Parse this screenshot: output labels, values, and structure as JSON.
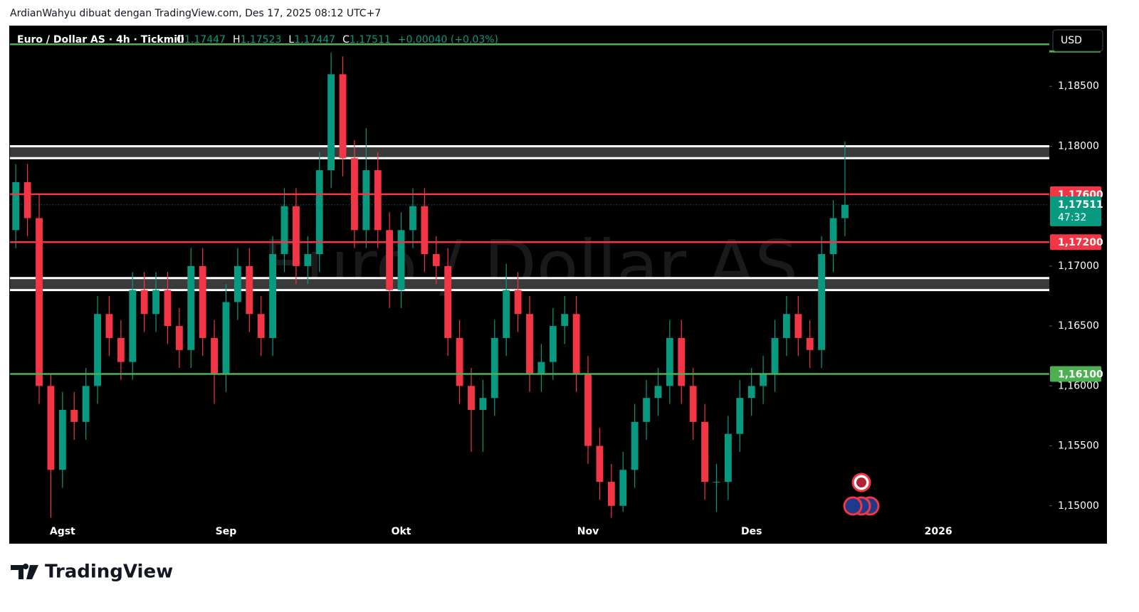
{
  "attribution": "ArdianWahyu dibuat dengan TradingView.com, Des 17, 2025 08:12 UTC+7",
  "brand": "TradingView",
  "chart_data": {
    "type": "candlestick",
    "title": "Euro / Dollar AS · 4h · Tickmill",
    "watermark": "Euro / Dollar AS",
    "currency": "USD",
    "ohlc_legend": [
      {
        "key": "O",
        "value": "1,17447"
      },
      {
        "key": "H",
        "value": "1,17523"
      },
      {
        "key": "L",
        "value": "1,17447"
      },
      {
        "key": "C",
        "value": "1,17511"
      }
    ],
    "change": "+0,00040 (+0,03%)",
    "up_color": "#089981",
    "down_color": "#f23645",
    "categories": [
      null,
      null,
      null,
      null,
      "Agst",
      null,
      null,
      null,
      null,
      null,
      null,
      null,
      null,
      null,
      null,
      null,
      null,
      null,
      "Sep",
      null,
      null,
      null,
      null,
      null,
      null,
      null,
      null,
      null,
      null,
      null,
      null,
      null,
      null,
      "Okt",
      null,
      null,
      null,
      null,
      null,
      null,
      null,
      null,
      null,
      null,
      null,
      null,
      null,
      null,
      null,
      "Nov",
      null,
      null,
      null,
      null,
      null,
      null,
      null,
      null,
      null,
      null,
      null,
      null,
      null,
      "Des",
      null,
      null,
      null,
      null,
      null,
      null,
      null,
      null,
      null,
      null,
      null,
      null,
      null,
      null,
      null,
      "2026",
      null,
      null,
      null,
      null,
      null,
      null,
      null,
      null,
      null
    ],
    "open": [
      1.173,
      1.177,
      1.174,
      1.16,
      1.153,
      1.158,
      1.157,
      1.16,
      1.166,
      1.164,
      1.162,
      1.168,
      1.166,
      1.168,
      1.165,
      1.163,
      1.17,
      1.164,
      1.161,
      1.167,
      1.17,
      1.166,
      1.164,
      1.171,
      1.175,
      1.17,
      1.171,
      1.178,
      1.186,
      1.179,
      1.173,
      1.178,
      1.173,
      1.168,
      1.173,
      1.175,
      1.171,
      1.17,
      1.164,
      1.16,
      1.158,
      1.159,
      1.164,
      1.168,
      1.166,
      1.161,
      1.162,
      1.165,
      1.166,
      1.161,
      1.155,
      1.152,
      1.15,
      1.153,
      1.157,
      1.159,
      1.16,
      1.164,
      1.16,
      1.157,
      1.152,
      1.152,
      1.156,
      1.159,
      1.16,
      1.161,
      1.164,
      1.166,
      1.164,
      1.163,
      1.171,
      1.174,
      null,
      null,
      null,
      null,
      null,
      null,
      null,
      null,
      null,
      null,
      null,
      null,
      null,
      null,
      null,
      null,
      null
    ],
    "high": [
      1.1785,
      1.1785,
      1.176,
      1.161,
      1.1595,
      1.1595,
      1.1615,
      1.1675,
      1.1675,
      1.1655,
      1.1695,
      1.1695,
      1.1695,
      1.1695,
      1.1665,
      1.1715,
      1.1715,
      1.1655,
      1.1685,
      1.1715,
      1.1715,
      1.1675,
      1.1725,
      1.1765,
      1.1765,
      1.1725,
      1.1795,
      1.1878,
      1.1875,
      1.1805,
      1.1815,
      1.1795,
      1.1745,
      1.1745,
      1.1765,
      1.1765,
      1.1725,
      1.1715,
      1.1655,
      1.1615,
      1.1605,
      1.1655,
      1.1702,
      1.1695,
      1.1675,
      1.1635,
      1.1665,
      1.1675,
      1.1675,
      1.1625,
      1.1565,
      1.1535,
      1.1545,
      1.1585,
      1.1605,
      1.1615,
      1.1655,
      1.1655,
      1.1615,
      1.1585,
      1.1535,
      1.1575,
      1.1605,
      1.1615,
      1.1625,
      1.1655,
      1.1675,
      1.1675,
      1.1655,
      1.1725,
      1.1755,
      1.1804,
      null,
      null,
      null,
      null,
      null,
      null,
      null,
      null,
      null,
      null,
      null,
      null,
      null,
      null,
      null,
      null,
      null
    ],
    "low": [
      1.1715,
      1.1725,
      1.1585,
      1.149,
      1.1515,
      1.1555,
      1.1555,
      1.1585,
      1.1625,
      1.1605,
      1.1605,
      1.1645,
      1.1645,
      1.1635,
      1.1615,
      1.1615,
      1.1625,
      1.1585,
      1.1595,
      1.1655,
      1.1645,
      1.1625,
      1.1625,
      1.1695,
      1.1685,
      1.1685,
      1.1695,
      1.1765,
      1.1775,
      1.1715,
      1.1715,
      1.1715,
      1.1665,
      1.1665,
      1.1715,
      1.1695,
      1.1685,
      1.1625,
      1.1585,
      1.1545,
      1.1545,
      1.1575,
      1.1625,
      1.1645,
      1.1595,
      1.1595,
      1.1605,
      1.1635,
      1.1595,
      1.1535,
      1.1505,
      1.149,
      1.1495,
      1.1515,
      1.1555,
      1.1575,
      1.1585,
      1.1585,
      1.1555,
      1.1505,
      1.1495,
      1.1505,
      1.1545,
      1.1575,
      1.1585,
      1.1595,
      1.1625,
      1.1625,
      1.1615,
      1.1615,
      1.1695,
      1.1725,
      null,
      null,
      null,
      null,
      null,
      null,
      null,
      null,
      null,
      null,
      null,
      null,
      null,
      null,
      null,
      null,
      null
    ],
    "close": [
      1.177,
      1.174,
      1.16,
      1.153,
      1.158,
      1.157,
      1.16,
      1.166,
      1.164,
      1.162,
      1.168,
      1.166,
      1.168,
      1.165,
      1.163,
      1.17,
      1.164,
      1.161,
      1.167,
      1.17,
      1.166,
      1.164,
      1.171,
      1.175,
      1.17,
      1.171,
      1.178,
      1.186,
      1.179,
      1.173,
      1.178,
      1.173,
      1.168,
      1.173,
      1.175,
      1.171,
      1.17,
      1.164,
      1.16,
      1.158,
      1.159,
      1.164,
      1.168,
      1.166,
      1.161,
      1.162,
      1.165,
      1.166,
      1.161,
      1.155,
      1.152,
      1.15,
      1.153,
      1.157,
      1.159,
      1.16,
      1.164,
      1.16,
      1.157,
      1.152,
      1.152,
      1.156,
      1.159,
      1.16,
      1.161,
      1.164,
      1.166,
      1.164,
      1.163,
      1.171,
      1.174,
      1.17511,
      null,
      null,
      null,
      null,
      null,
      null,
      null,
      null,
      null,
      null,
      null,
      null,
      null,
      null,
      null,
      null,
      null
    ],
    "ylim": [
      1.1469,
      1.19
    ],
    "yticks": [
      {
        "value": 1.185,
        "label": "1,18500"
      },
      {
        "value": 1.18,
        "label": "1,18000"
      },
      {
        "value": 1.17,
        "label": "1,17000"
      },
      {
        "value": 1.165,
        "label": "1,16500"
      },
      {
        "value": 1.16,
        "label": "1,16000"
      },
      {
        "value": 1.155,
        "label": "1,15500"
      },
      {
        "value": 1.15,
        "label": "1,15000"
      }
    ],
    "zones": [
      {
        "from": 1.18,
        "to": 1.179
      },
      {
        "from": 1.169,
        "to": 1.168
      }
    ],
    "levels": [
      {
        "value": 1.1885,
        "color": "#4caf50"
      },
      {
        "value": 1.176,
        "label": "1,17600",
        "color": "#f23645"
      },
      {
        "value": 1.172,
        "label": "1,17200",
        "color": "#f23645"
      },
      {
        "value": 1.161,
        "label": "1,16100",
        "color": "#4caf50"
      }
    ],
    "last_price": {
      "value": 1.17511,
      "label": "1,17511",
      "countdown": "47:32",
      "color": "#089981"
    }
  }
}
